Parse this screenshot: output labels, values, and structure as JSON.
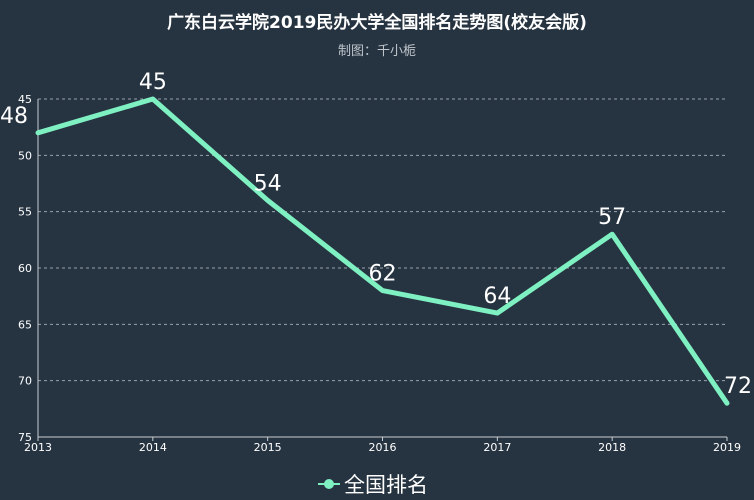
{
  "chart_data": {
    "type": "line",
    "title": "广东白云学院2019民办大学全国排名走势图(校友会版)",
    "subtitle": "制图：千小栀",
    "x": [
      "2013",
      "2014",
      "2015",
      "2016",
      "2017",
      "2018",
      "2019"
    ],
    "series": [
      {
        "name": "全国排名",
        "values": [
          48,
          45,
          54,
          62,
          64,
          57,
          72
        ]
      }
    ],
    "y_ticks": [
      "45",
      "50",
      "55",
      "60",
      "65",
      "70",
      "75"
    ],
    "ylim": [
      45,
      75
    ],
    "y_inverted": true,
    "grid": true,
    "legend": "bottom-center",
    "colors": {
      "background": "#263340",
      "series": "#7ef0c2"
    }
  }
}
